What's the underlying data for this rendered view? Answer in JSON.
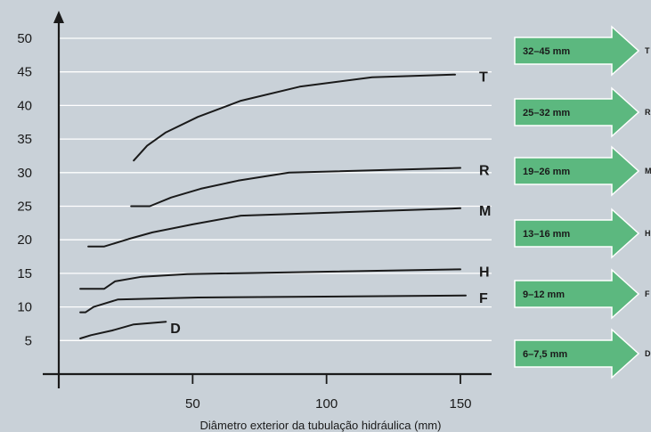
{
  "chart_data": {
    "type": "line",
    "title": "",
    "xlabel": "Diâmetro exterior da tubulação hidráulica (mm)",
    "ylabel": "",
    "xlim": [
      0,
      160
    ],
    "ylim": [
      0,
      52
    ],
    "xticks": [
      50,
      100,
      150
    ],
    "yticks": [
      5,
      10,
      15,
      20,
      25,
      30,
      35,
      40,
      45,
      50
    ],
    "grid": "horizontal",
    "series": [
      {
        "name": "T",
        "x": [
          28,
          33,
          40,
          52,
          68,
          90,
          117,
          148
        ],
        "y": [
          31.8,
          34,
          36,
          38.3,
          40.7,
          42.8,
          44.2,
          44.6
        ]
      },
      {
        "name": "R",
        "x": [
          27,
          34,
          42,
          53,
          67,
          86,
          150
        ],
        "y": [
          25,
          25,
          26.3,
          27.6,
          28.8,
          30,
          30.7
        ]
      },
      {
        "name": "M",
        "x": [
          11,
          17,
          26,
          35,
          50,
          68,
          150
        ],
        "y": [
          19,
          19,
          20.1,
          21.1,
          22.3,
          23.6,
          24.7
        ]
      },
      {
        "name": "H",
        "x": [
          8,
          17,
          21,
          31,
          48,
          150
        ],
        "y": [
          12.7,
          12.7,
          13.8,
          14.5,
          14.9,
          15.6
        ]
      },
      {
        "name": "F",
        "x": [
          8,
          10,
          13,
          22,
          52,
          152
        ],
        "y": [
          9.2,
          9.2,
          10,
          11.1,
          11.4,
          11.7
        ]
      },
      {
        "name": "D",
        "x": [
          8,
          12,
          20,
          28,
          40
        ],
        "y": [
          5.3,
          5.8,
          6.5,
          7.4,
          7.8
        ]
      }
    ]
  },
  "arrows": [
    {
      "label": "32–45 mm",
      "letter": "T"
    },
    {
      "label": "25–32 mm",
      "letter": "R"
    },
    {
      "label": "19–26 mm",
      "letter": "M"
    },
    {
      "label": "13–16 mm",
      "letter": "H"
    },
    {
      "label": "9–12 mm",
      "letter": "F"
    },
    {
      "label": "6–7,5 mm",
      "letter": "D"
    }
  ],
  "colors": {
    "background": "#c9d1d8",
    "gridline": "#ffffff",
    "arrow_fill": "#5cb87f",
    "line": "#1a1a1a"
  }
}
